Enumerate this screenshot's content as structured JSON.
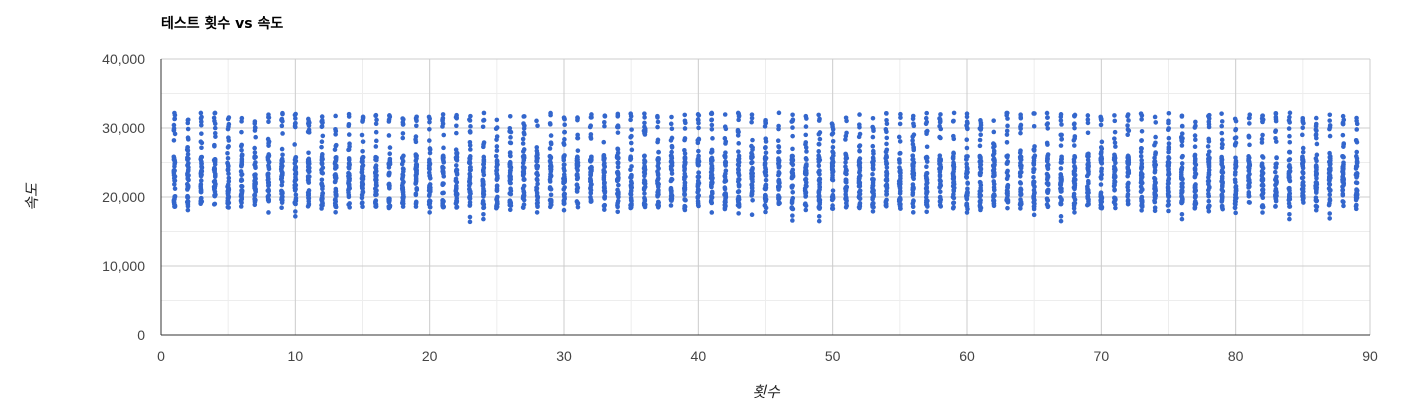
{
  "chart_data": {
    "type": "scatter",
    "title": "테스트 횟수 vs 속도",
    "xlabel": "횟수",
    "ylabel": "속도",
    "xlim": [
      0,
      90
    ],
    "ylim": [
      0,
      40000
    ],
    "x_ticks": [
      0,
      10,
      20,
      30,
      40,
      50,
      60,
      70,
      80,
      90
    ],
    "y_ticks": [
      0,
      10000,
      20000,
      30000,
      40000
    ],
    "x_tick_labels": [
      "0",
      "10",
      "20",
      "30",
      "40",
      "50",
      "60",
      "70",
      "80",
      "90"
    ],
    "y_tick_labels": [
      "0",
      "10,000",
      "20,000",
      "30,000",
      "40,000"
    ],
    "grid": true,
    "legend": "none",
    "point_color": "#3366cc",
    "x_range": [
      1,
      89
    ],
    "x_step": 1,
    "dense_band": [
      18000,
      26000
    ],
    "sparse_band": [
      26000,
      32200
    ],
    "min_outliers": [
      {
        "x": 10,
        "y": 17200
      },
      {
        "x": 23,
        "y": 16400
      },
      {
        "x": 24,
        "y": 16800
      },
      {
        "x": 47,
        "y": 16600
      },
      {
        "x": 49,
        "y": 16500
      },
      {
        "x": 67,
        "y": 16500
      },
      {
        "x": 76,
        "y": 16800
      },
      {
        "x": 84,
        "y": 16800
      },
      {
        "x": 87,
        "y": 16900
      }
    ]
  }
}
